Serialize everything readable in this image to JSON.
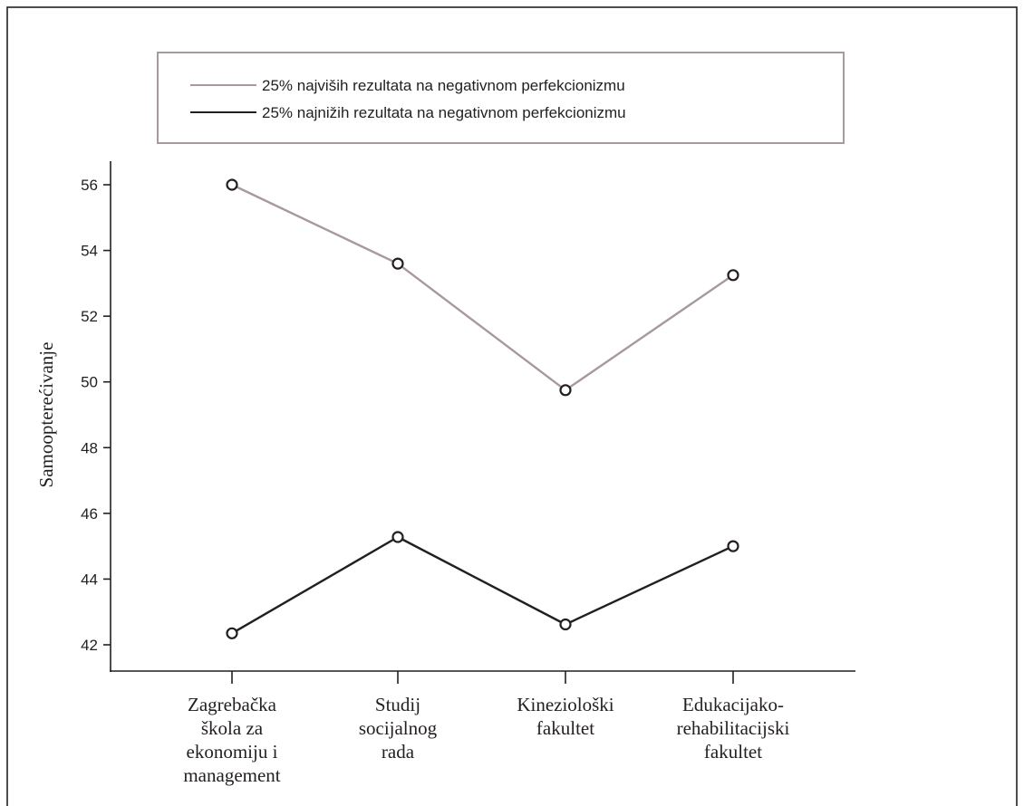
{
  "chart_data": {
    "type": "line",
    "categories": [
      [
        "Zagrebačka",
        "škola za",
        "ekonomiju i",
        "management"
      ],
      [
        "Studij",
        "socijalnog",
        "rada"
      ],
      [
        "Kineziološki",
        "fakultet"
      ],
      [
        "Edukacijako-",
        "rehabilitacijski",
        "fakultet"
      ]
    ],
    "series": [
      {
        "name": "25% najviših rezultata na negativnom perfekcionizmu",
        "color": "#a8999a",
        "values": [
          56.0,
          53.6,
          49.75,
          53.25
        ]
      },
      {
        "name": "25% najnižih rezultata na negativnom perfekcionizmu",
        "color": "#231f20",
        "values": [
          42.35,
          45.28,
          42.62,
          45.0
        ]
      }
    ],
    "ylabel": "Samoopterećivanje",
    "xlabel": "",
    "title": "",
    "yticks": [
      42,
      44,
      46,
      48,
      50,
      52,
      54,
      56
    ],
    "ylim": [
      41.2,
      56.8
    ],
    "legend_position": "top-center",
    "marker": "open-circle",
    "frame_color": "#231f20",
    "legend_border_color": "#a8999a"
  }
}
